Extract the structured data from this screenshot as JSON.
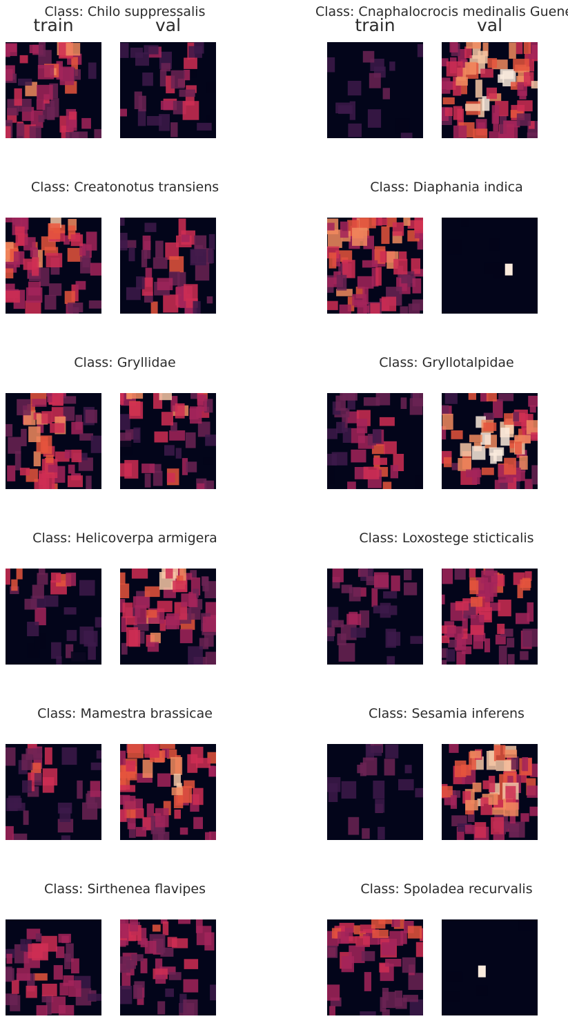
{
  "figure": {
    "col_labels": [
      "train",
      "val"
    ],
    "colormap": [
      "#03051a",
      "#3d1a4a",
      "#6b2354",
      "#a3245b",
      "#cf2e53",
      "#e5553d",
      "#f18b5f",
      "#f6c7a6",
      "#faebdd"
    ]
  },
  "chart_data": {
    "type": "heatmap",
    "description_grid": "4x4 coarse intensity (0-1), rows top to bottom",
    "panels": [
      {
        "title": "Class: Chilo suppressalis",
        "train": {
          "grid": [
            [
              0.35,
              0.45,
              0.55,
              0.25
            ],
            [
              0.3,
              0.55,
              0.4,
              0.2
            ],
            [
              0.3,
              0.35,
              0.25,
              0.15
            ],
            [
              0.35,
              0.3,
              0.4,
              0.25
            ]
          ],
          "seed": 11
        },
        "val": {
          "grid": [
            [
              0.2,
              0.25,
              0.4,
              0.1
            ],
            [
              0.05,
              0.2,
              0.45,
              0.05
            ],
            [
              0.25,
              0.3,
              0.4,
              0.1
            ],
            [
              0.1,
              0.15,
              0.35,
              0.05
            ]
          ],
          "seed": 12
        }
      },
      {
        "title": "Class: Cnaphalocrocis medinalis Guenee",
        "train": {
          "grid": [
            [
              0.1,
              0.2,
              0.15,
              0.1
            ],
            [
              0.05,
              0.15,
              0.1,
              0.05
            ],
            [
              0.05,
              0.15,
              0.2,
              0.1
            ],
            [
              0.05,
              0.1,
              0.05,
              0.05
            ]
          ],
          "seed": 13
        },
        "val": {
          "grid": [
            [
              0.4,
              0.6,
              0.6,
              0.4
            ],
            [
              0.55,
              0.85,
              0.75,
              0.55
            ],
            [
              0.5,
              0.7,
              0.7,
              0.5
            ],
            [
              0.35,
              0.45,
              0.45,
              0.35
            ]
          ],
          "seed": 14
        }
      },
      {
        "title": "Class: Creatonotus transiens",
        "train": {
          "grid": [
            [
              0.4,
              0.6,
              0.65,
              0.3
            ],
            [
              0.5,
              0.55,
              0.45,
              0.35
            ],
            [
              0.45,
              0.4,
              0.4,
              0.3
            ],
            [
              0.3,
              0.35,
              0.4,
              0.25
            ]
          ],
          "seed": 15
        },
        "val": {
          "grid": [
            [
              0.1,
              0.2,
              0.35,
              0.1
            ],
            [
              0.15,
              0.3,
              0.5,
              0.2
            ],
            [
              0.2,
              0.35,
              0.3,
              0.15
            ],
            [
              0.1,
              0.45,
              0.4,
              0.2
            ]
          ],
          "seed": 16
        }
      },
      {
        "title": "Class: Diaphania indica",
        "train": {
          "grid": [
            [
              0.5,
              0.55,
              0.55,
              0.5
            ],
            [
              0.55,
              0.45,
              0.55,
              0.45
            ],
            [
              0.45,
              0.45,
              0.45,
              0.4
            ],
            [
              0.55,
              0.45,
              0.4,
              0.4
            ]
          ],
          "seed": 17
        },
        "val": {
          "grid": [
            [
              0.0,
              0.0,
              0.0,
              0.0
            ],
            [
              0.0,
              0.0,
              0.0,
              0.0
            ],
            [
              0.0,
              0.0,
              0.0,
              0.0
            ],
            [
              0.0,
              0.0,
              0.0,
              0.0
            ]
          ],
          "seed": 18
        },
        "val_spot": {
          "x": 0.66,
          "y": 0.48,
          "value": 1.0
        }
      },
      {
        "title": "Class: Gryllidae",
        "train": {
          "grid": [
            [
              0.3,
              0.45,
              0.4,
              0.15
            ],
            [
              0.3,
              0.6,
              0.55,
              0.2
            ],
            [
              0.25,
              0.55,
              0.5,
              0.15
            ],
            [
              0.3,
              0.5,
              0.45,
              0.15
            ]
          ],
          "seed": 19
        },
        "val": {
          "grid": [
            [
              0.55,
              0.6,
              0.55,
              0.4
            ],
            [
              0.25,
              0.35,
              0.3,
              0.2
            ],
            [
              0.05,
              0.1,
              0.1,
              0.05
            ],
            [
              0.35,
              0.3,
              0.4,
              0.3
            ]
          ],
          "seed": 20
        }
      },
      {
        "title": "Class: Gryllotalpidae",
        "train": {
          "grid": [
            [
              0.2,
              0.25,
              0.25,
              0.2
            ],
            [
              0.15,
              0.35,
              0.3,
              0.1
            ],
            [
              0.1,
              0.4,
              0.45,
              0.1
            ],
            [
              0.05,
              0.35,
              0.45,
              0.05
            ]
          ],
          "seed": 21
        },
        "val": {
          "grid": [
            [
              0.3,
              0.45,
              0.45,
              0.3
            ],
            [
              0.6,
              0.9,
              0.9,
              0.6
            ],
            [
              0.6,
              0.9,
              0.9,
              0.6
            ],
            [
              0.3,
              0.45,
              0.45,
              0.3
            ]
          ],
          "seed": 22
        }
      },
      {
        "title": "Class: Helicoverpa armigera",
        "train": {
          "grid": [
            [
              0.45,
              0.2,
              0.4,
              0.15
            ],
            [
              0.1,
              0.25,
              0.1,
              0.1
            ],
            [
              0.05,
              0.05,
              0.1,
              0.15
            ],
            [
              0.05,
              0.05,
              0.15,
              0.1
            ]
          ],
          "seed": 23
        },
        "val": {
          "grid": [
            [
              0.55,
              0.6,
              0.6,
              0.3
            ],
            [
              0.4,
              0.45,
              0.4,
              0.25
            ],
            [
              0.35,
              0.5,
              0.45,
              0.25
            ],
            [
              0.2,
              0.35,
              0.3,
              0.15
            ]
          ],
          "seed": 24
        }
      },
      {
        "title": "Class: Loxostege sticticalis",
        "train": {
          "grid": [
            [
              0.3,
              0.25,
              0.3,
              0.2
            ],
            [
              0.15,
              0.3,
              0.15,
              0.1
            ],
            [
              0.2,
              0.25,
              0.1,
              0.1
            ],
            [
              0.15,
              0.15,
              0.1,
              0.05
            ]
          ],
          "seed": 25
        },
        "val": {
          "grid": [
            [
              0.4,
              0.45,
              0.45,
              0.45
            ],
            [
              0.35,
              0.4,
              0.4,
              0.35
            ],
            [
              0.35,
              0.4,
              0.4,
              0.3
            ],
            [
              0.3,
              0.35,
              0.3,
              0.25
            ]
          ],
          "seed": 26
        }
      },
      {
        "title": "Class: Mamestra brassicae",
        "train": {
          "grid": [
            [
              0.2,
              0.45,
              0.1,
              0.1
            ],
            [
              0.2,
              0.4,
              0.15,
              0.35
            ],
            [
              0.15,
              0.05,
              0.1,
              0.2
            ],
            [
              0.25,
              0.1,
              0.2,
              0.1
            ]
          ],
          "seed": 27
        },
        "val": {
          "grid": [
            [
              0.45,
              0.55,
              0.55,
              0.45
            ],
            [
              0.45,
              0.55,
              0.6,
              0.45
            ],
            [
              0.4,
              0.45,
              0.45,
              0.4
            ],
            [
              0.3,
              0.35,
              0.35,
              0.3
            ]
          ],
          "seed": 28
        }
      },
      {
        "title": "Class: Sesamia inferens",
        "train": {
          "grid": [
            [
              0.15,
              0.2,
              0.15,
              0.1
            ],
            [
              0.1,
              0.2,
              0.15,
              0.1
            ],
            [
              0.1,
              0.25,
              0.2,
              0.1
            ],
            [
              0.05,
              0.2,
              0.1,
              0.05
            ]
          ],
          "seed": 29
        },
        "val": {
          "grid": [
            [
              0.45,
              0.65,
              0.65,
              0.45
            ],
            [
              0.45,
              0.6,
              0.6,
              0.4
            ],
            [
              0.4,
              0.55,
              0.55,
              0.35
            ],
            [
              0.3,
              0.35,
              0.35,
              0.25
            ]
          ],
          "seed": 30
        }
      },
      {
        "title": "Class: Sirthenea flavipes",
        "train": {
          "grid": [
            [
              0.2,
              0.3,
              0.25,
              0.1
            ],
            [
              0.25,
              0.35,
              0.3,
              0.15
            ],
            [
              0.3,
              0.4,
              0.3,
              0.1
            ],
            [
              0.2,
              0.45,
              0.4,
              0.2
            ]
          ],
          "seed": 31
        },
        "val": {
          "grid": [
            [
              0.4,
              0.45,
              0.4,
              0.3
            ],
            [
              0.3,
              0.45,
              0.4,
              0.2
            ],
            [
              0.3,
              0.4,
              0.25,
              0.15
            ],
            [
              0.25,
              0.25,
              0.25,
              0.15
            ]
          ],
          "seed": 32
        }
      },
      {
        "title": "Class: Spoladea recurvalis",
        "train": {
          "grid": [
            [
              0.45,
              0.45,
              0.45,
              0.5
            ],
            [
              0.35,
              0.35,
              0.35,
              0.35
            ],
            [
              0.3,
              0.3,
              0.35,
              0.25
            ],
            [
              0.3,
              0.25,
              0.3,
              0.2
            ]
          ],
          "seed": 33
        },
        "val": {
          "grid": [
            [
              0.0,
              0.0,
              0.0,
              0.0
            ],
            [
              0.0,
              0.0,
              0.0,
              0.0
            ],
            [
              0.0,
              0.0,
              0.0,
              0.0
            ],
            [
              0.0,
              0.0,
              0.0,
              0.0
            ]
          ],
          "seed": 34
        },
        "val_spot": {
          "x": 0.38,
          "y": 0.48,
          "value": 1.0
        }
      }
    ]
  }
}
